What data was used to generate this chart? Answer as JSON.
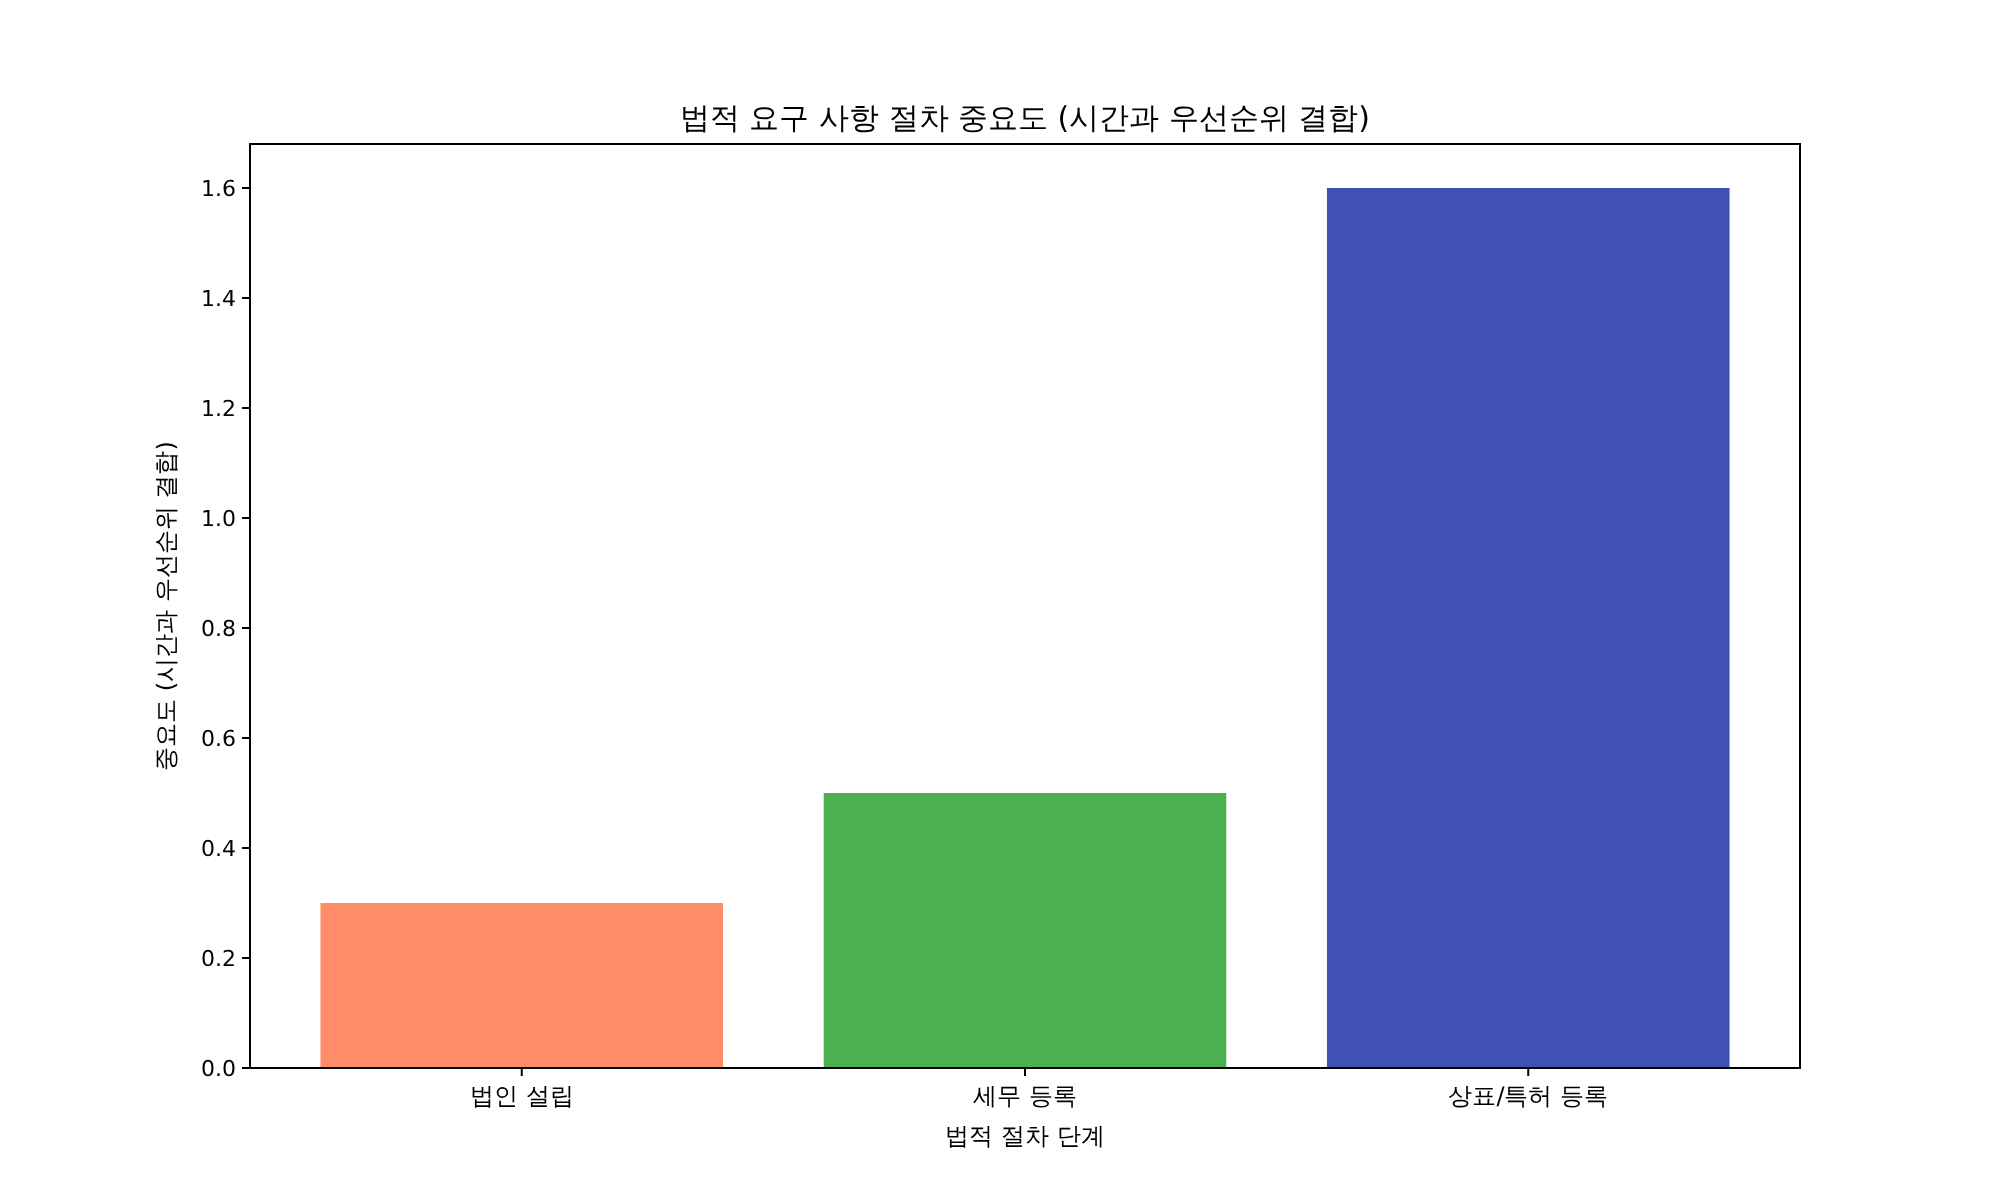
{
  "chart_data": {
    "type": "bar",
    "title": "법적 요구 사항 절차 중요도 (시간과 우선순위 결합)",
    "xlabel": "법적 절차 단계",
    "ylabel": "중요도 (시간과 우선순위 결합)",
    "categories": [
      "법인 설립",
      "세무 등록",
      "상표/특허 등록"
    ],
    "values": [
      0.3,
      0.5,
      1.6
    ],
    "colors": [
      "#ff8c69",
      "#4caf50",
      "#3f51b5"
    ],
    "ylim": [
      0,
      1.68
    ],
    "yticks": [
      {
        "value": 0,
        "label": "0.0"
      },
      {
        "value": 0.2,
        "label": "0.2"
      },
      {
        "value": 0.4,
        "label": "0.4"
      },
      {
        "value": 0.6,
        "label": "0.6"
      },
      {
        "value": 0.8,
        "label": "0.8"
      },
      {
        "value": 1.0,
        "label": "1.0"
      },
      {
        "value": 1.2,
        "label": "1.2"
      },
      {
        "value": 1.4,
        "label": "1.4"
      },
      {
        "value": 1.6,
        "label": "1.6"
      }
    ]
  }
}
